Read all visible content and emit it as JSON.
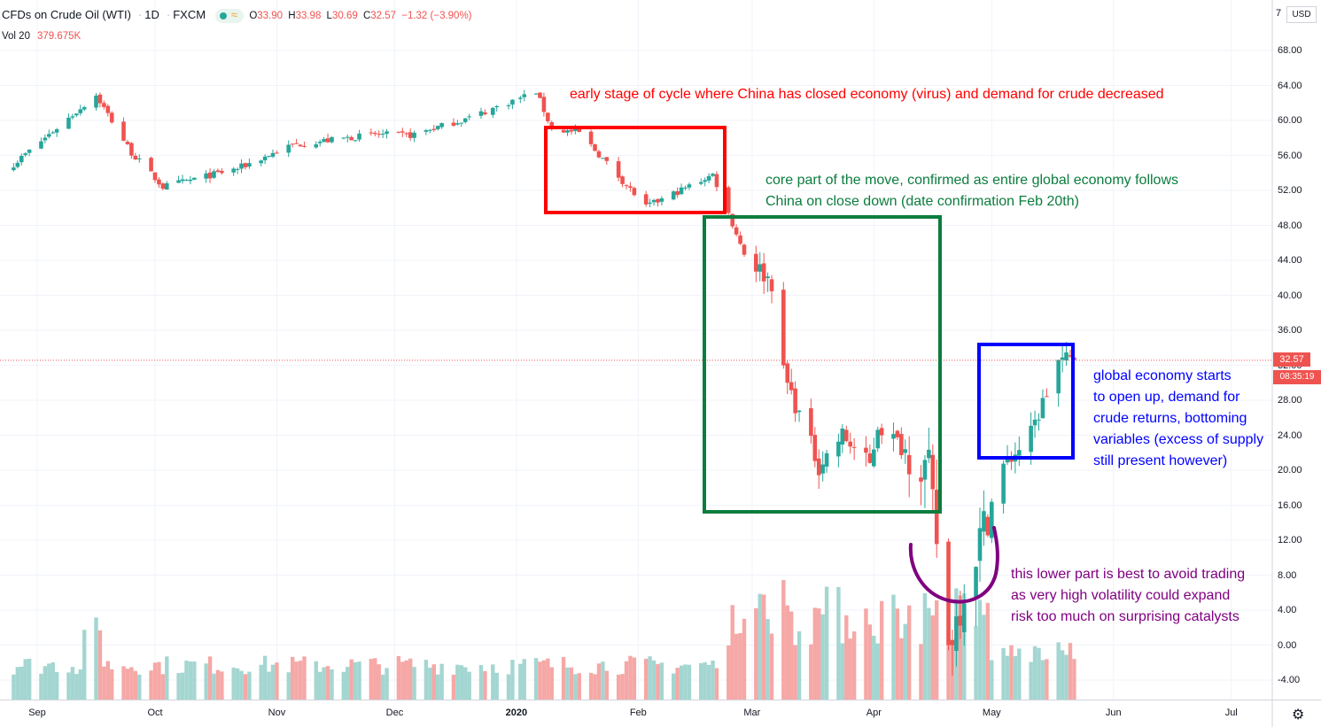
{
  "header": {
    "symbol": "CFDs on Crude Oil (WTI)",
    "interval": "1D",
    "source": "FXCM",
    "status_icons": [
      "live-dot-icon",
      "wave-icon"
    ],
    "open_label": "O",
    "open": "33.90",
    "high_label": "H",
    "high": "33.98",
    "low_label": "L",
    "low": "30.69",
    "close_label": "C",
    "close": "32.57",
    "change": "−1.32 (−3.90%)"
  },
  "volume_indicator": {
    "label": "Vol 20",
    "value": "379.675K"
  },
  "price_axis": {
    "currency": "USD",
    "top_partial": "7",
    "ticks": [
      "68.00",
      "64.00",
      "60.00",
      "56.00",
      "52.00",
      "48.00",
      "44.00",
      "40.00",
      "36.00",
      "32.00",
      "28.00",
      "24.00",
      "20.00",
      "16.00",
      "12.00",
      "8.00",
      "4.00",
      "0.00",
      "-4.00"
    ],
    "last_price_label": "32.57",
    "countdown_label": "08:35:19"
  },
  "time_axis": {
    "ticks": [
      "Sep",
      "Oct",
      "Nov",
      "Dec",
      "2020",
      "Feb",
      "Mar",
      "Apr",
      "May",
      "Jun",
      "Jul"
    ],
    "bold": "2020"
  },
  "annotations": {
    "red_note": "early stage of cycle where China has closed economy (virus) and demand for crude decreased",
    "green_note_1": "core part of the move, confirmed as entire global economy follows",
    "green_note_2": "China on close down (date confirmation Feb 20th)",
    "blue_note_1": "global economy starts",
    "blue_note_2": "to open up, demand for",
    "blue_note_3": "crude returns, bottoming",
    "blue_note_4": "variables (excess of supply",
    "blue_note_5": "still present however)",
    "purple_note_1": "this lower part is best to avoid trading",
    "purple_note_2": "as very high volatility could expand",
    "purple_note_3": "risk too much on surprising catalysts"
  },
  "colors": {
    "up": "#26a69a",
    "down": "#ef5350",
    "up_volume": "#a4d6d1",
    "down_volume": "#f5a8a6",
    "red_box": "#ff0000",
    "green_box": "#0b7d3e",
    "blue_box": "#0000ff",
    "purple": "#800080",
    "grid": "#f0f3fa"
  },
  "chart_data": {
    "type": "candlestick",
    "y_axis_range": [
      -6,
      72
    ],
    "x_axis": "trading days, Aug 2019 – Jul 2020",
    "last_price": 32.57,
    "anchor_points": [
      {
        "date": "2019-08-26",
        "close": 55.0
      },
      {
        "date": "2019-09-16",
        "close": 62.9
      },
      {
        "date": "2019-09-25",
        "close": 56.3
      },
      {
        "date": "2019-10-03",
        "close": 52.4
      },
      {
        "date": "2019-10-22",
        "close": 54.5
      },
      {
        "date": "2019-11-05",
        "close": 57.2
      },
      {
        "date": "2019-11-26",
        "close": 58.4
      },
      {
        "date": "2019-12-05",
        "close": 58.3
      },
      {
        "date": "2019-12-20",
        "close": 60.3
      },
      {
        "date": "2020-01-06",
        "close": 63.3
      },
      {
        "date": "2020-01-10",
        "close": 59.0
      },
      {
        "date": "2020-01-17",
        "close": 58.6
      },
      {
        "date": "2020-02-03",
        "close": 50.1
      },
      {
        "date": "2020-02-20",
        "close": 53.8
      },
      {
        "date": "2020-02-28",
        "close": 44.8
      },
      {
        "date": "2020-03-06",
        "close": 41.5
      },
      {
        "date": "2020-03-09",
        "close": 31.1
      },
      {
        "date": "2020-03-18",
        "close": 20.5
      },
      {
        "date": "2020-03-24",
        "close": 24.0
      },
      {
        "date": "2020-03-31",
        "close": 20.5
      },
      {
        "date": "2020-04-02",
        "close": 25.2
      },
      {
        "date": "2020-04-15",
        "close": 19.9
      },
      {
        "date": "2020-04-20",
        "close": 0.0
      },
      {
        "date": "2020-04-28",
        "close": 12.3
      },
      {
        "date": "2020-05-04",
        "close": 20.4
      },
      {
        "date": "2020-05-11",
        "close": 24.1
      },
      {
        "date": "2020-05-18",
        "close": 32.5
      },
      {
        "date": "2020-05-22",
        "close": 32.57
      }
    ],
    "volume_note": "volume histogram, values estimated from bar heights (pseudo-units)"
  }
}
